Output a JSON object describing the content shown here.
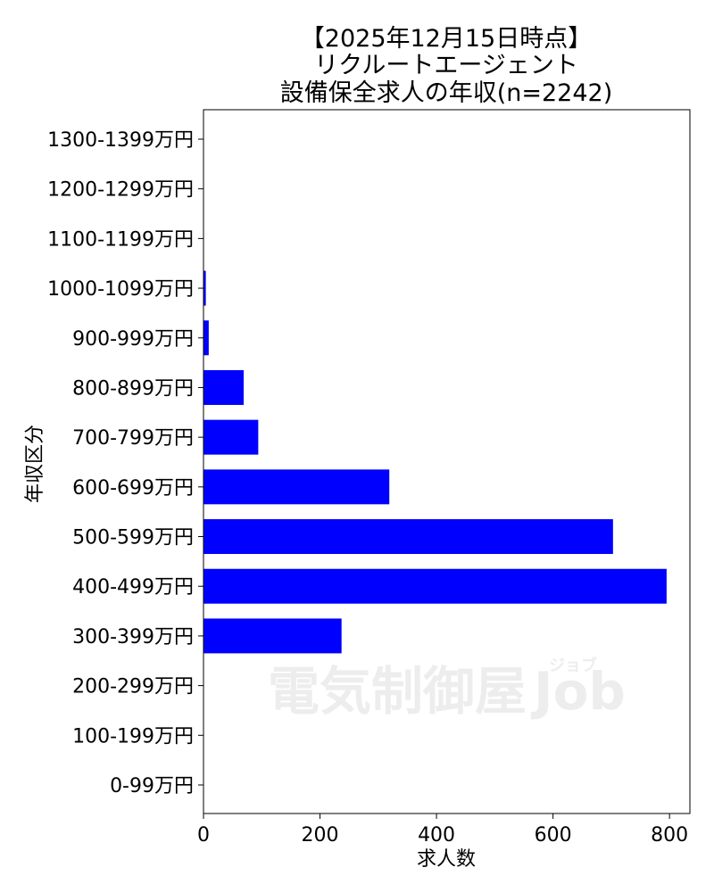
{
  "chart_data": {
    "type": "bar",
    "orientation": "horizontal",
    "title_lines": [
      "【2025年12月15日時点】",
      "リクルートエージェント",
      "設備保全求人の年収(n=2242)"
    ],
    "xlabel": "求人数",
    "ylabel": "年収区分",
    "xlim": [
      0,
      835
    ],
    "xticks": [
      0,
      200,
      400,
      600,
      800
    ],
    "categories": [
      "0-99万円",
      "100-199万円",
      "200-299万円",
      "300-399万円",
      "400-499万円",
      "500-599万円",
      "600-699万円",
      "700-799万円",
      "800-899万円",
      "900-999万円",
      "1000-1099万円",
      "1100-1199万円",
      "1200-1299万円",
      "1300-1399万円"
    ],
    "values": [
      0,
      0,
      0,
      237,
      795,
      703,
      319,
      94,
      69,
      9,
      4,
      0,
      0,
      0
    ],
    "bar_color": "#0000ff",
    "grid": false,
    "watermark": {
      "main": "電気制御屋",
      "sub": "Job",
      "kana": "ジョブ"
    }
  }
}
